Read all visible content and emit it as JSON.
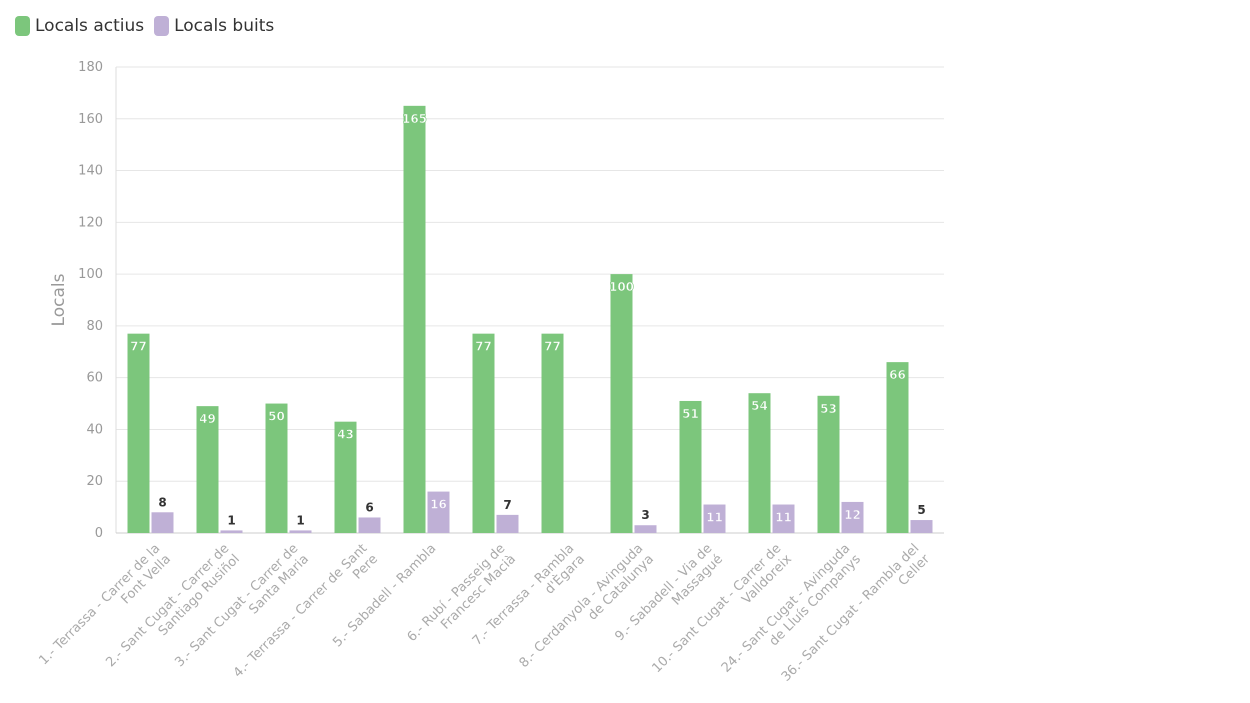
{
  "legend": {
    "series0": "Locals actius",
    "series1": "Locals buits"
  },
  "chart_data": {
    "type": "bar",
    "title": "",
    "xlabel": "",
    "ylabel": "Locals",
    "ylim": [
      0,
      180
    ],
    "yticks": [
      0,
      20,
      40,
      60,
      80,
      100,
      120,
      140,
      160,
      180
    ],
    "grid": true,
    "legend_position": "top-left",
    "categories": [
      [
        "1.- Terrassa - Carrer de la",
        "Font Vella"
      ],
      [
        "2.- Sant Cugat - Carrer de",
        "Santiago Rusiñol"
      ],
      [
        "3.- Sant Cugat - Carrer de",
        "Santa Maria"
      ],
      [
        "4.- Terrassa - Carrer de Sant",
        "Pere"
      ],
      [
        "5.- Sabadell - Rambla"
      ],
      [
        "6.- Rubí - Passeig de",
        "Francesc Macià"
      ],
      [
        "7.- Terrassa - Rambla",
        "d'Ègara"
      ],
      [
        "8.- Cerdanyola - Avinguda",
        "de Catalunya"
      ],
      [
        "9.- Sabadell - Via de",
        "Massagué"
      ],
      [
        "10.- Sant Cugat - Carrer de",
        "Valldoreix"
      ],
      [
        "24.- Sant Cugat - Avinguda",
        "de Lluís Companys"
      ],
      [
        "36.- Sant Cugat - Rambla del",
        "Celler"
      ]
    ],
    "series": [
      {
        "name": "Locals actius",
        "color": "#7cc67c",
        "values": [
          77,
          49,
          50,
          43,
          165,
          77,
          77,
          100,
          51,
          54,
          53,
          66
        ]
      },
      {
        "name": "Locals buits",
        "color": "#bfb0d6",
        "values": [
          8,
          1,
          1,
          6,
          16,
          7,
          null,
          3,
          11,
          11,
          12,
          5
        ]
      }
    ]
  }
}
